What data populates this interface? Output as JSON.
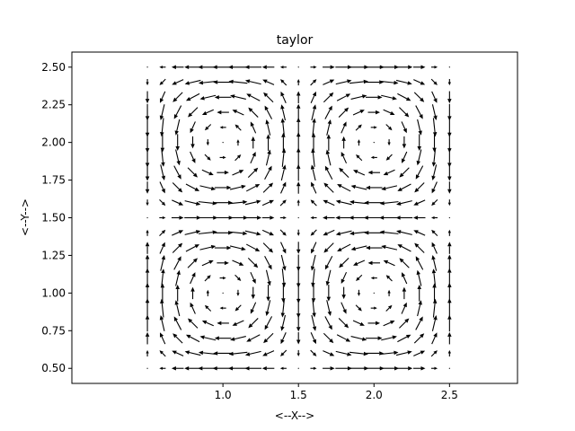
{
  "chart_data": {
    "type": "quiver",
    "title": "taylor",
    "xlabel": "<--X-->",
    "ylabel": "<--Y-->",
    "xlim": [
      0.0,
      2.95
    ],
    "ylim": [
      0.4,
      2.6
    ],
    "xticks": [
      1.0,
      1.5,
      2.0,
      2.5
    ],
    "xtick_labels": [
      "1.0",
      "1.5",
      "2.0",
      "2.5"
    ],
    "yticks": [
      0.5,
      0.75,
      1.0,
      1.25,
      1.5,
      1.75,
      2.0,
      2.25,
      2.5
    ],
    "ytick_labels": [
      "0.50",
      "0.75",
      "1.00",
      "1.25",
      "1.50",
      "1.75",
      "2.00",
      "2.25",
      "2.50"
    ],
    "grid": false,
    "legend": "none",
    "field": {
      "formula": "u = cos(pi*x)*sin(pi*y), v = -sin(pi*x)*cos(pi*y)",
      "x_start": 0.5,
      "x_end": 2.5,
      "x_count": 21,
      "y_start": 0.5,
      "y_end": 2.5,
      "y_count": 21,
      "scale_note": "arrow length proportional to speed; max speed = 1"
    },
    "arrow_color": "#000000"
  }
}
